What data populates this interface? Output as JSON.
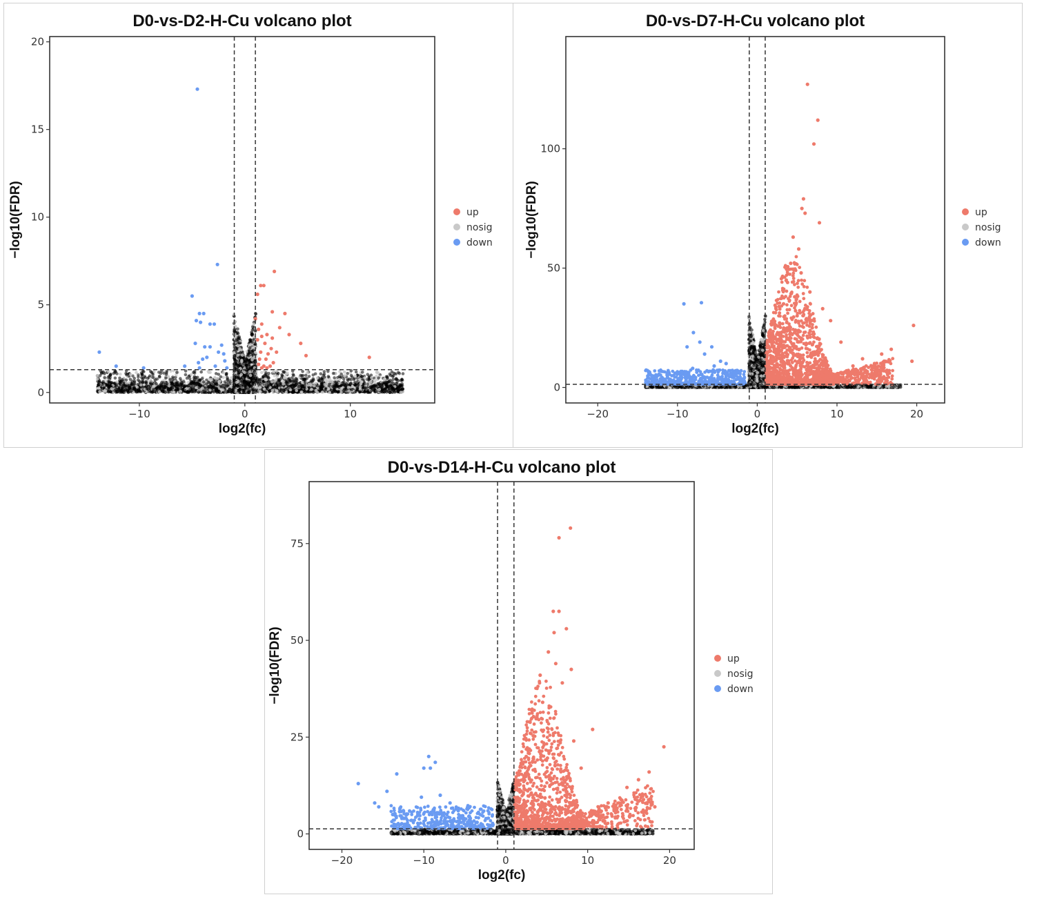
{
  "chart_data": [
    {
      "type": "scatter",
      "title": "D0-vs-D2-H-Cu volcano plot",
      "xlabel": "log2(fc)",
      "ylabel": "-log10(FDR)",
      "xlim": [
        -18.5,
        18
      ],
      "ylim": [
        -0.6,
        20.3
      ],
      "xticks": [
        -10,
        0,
        10
      ],
      "yticks": [
        0,
        5,
        10,
        15,
        20
      ],
      "fc_cutoff": [
        -1,
        1
      ],
      "fdr_cutoff": 1.3,
      "legend": {
        "position": "right",
        "entries": [
          {
            "key": "up",
            "label": "up",
            "color": "#EE7A6B"
          },
          {
            "key": "nosig",
            "label": "nosig",
            "color": "#C9C9C9"
          },
          {
            "key": "down",
            "label": "down",
            "color": "#6A9BF2"
          }
        ]
      },
      "series": [
        {
          "name": "up",
          "points": [
            [
              2.8,
              6.9
            ],
            [
              1.5,
              6.1
            ],
            [
              1.8,
              6.1
            ],
            [
              1.2,
              5.6
            ],
            [
              1.0,
              4.2
            ],
            [
              1.6,
              3.9
            ],
            [
              2.6,
              4.6
            ],
            [
              3.8,
              4.5
            ],
            [
              1.3,
              3.6
            ],
            [
              3.3,
              3.7
            ],
            [
              4.2,
              3.3
            ],
            [
              1.6,
              3.2
            ],
            [
              2.1,
              3.3
            ],
            [
              2.6,
              3.1
            ],
            [
              1.2,
              3.0
            ],
            [
              5.3,
              2.8
            ],
            [
              1.9,
              2.8
            ],
            [
              2.5,
              2.5
            ],
            [
              1.5,
              2.3
            ],
            [
              3.0,
              2.3
            ],
            [
              2.2,
              2.2
            ],
            [
              5.8,
              2.1
            ],
            [
              11.8,
              2.0
            ],
            [
              1.4,
              1.9
            ],
            [
              2.0,
              1.9
            ],
            [
              2.7,
              1.7
            ],
            [
              1.3,
              1.6
            ],
            [
              1.8,
              1.5
            ],
            [
              2.4,
              1.5
            ],
            [
              1.6,
              1.4
            ],
            [
              2.1,
              1.4
            ]
          ]
        },
        {
          "name": "down",
          "points": [
            [
              -4.5,
              17.3
            ],
            [
              -2.6,
              7.3
            ],
            [
              -5.0,
              5.5
            ],
            [
              -3.9,
              4.5
            ],
            [
              -4.3,
              4.5
            ],
            [
              -4.2,
              4.0
            ],
            [
              -3.3,
              3.9
            ],
            [
              -2.9,
              3.9
            ],
            [
              -4.6,
              4.1
            ],
            [
              -13.8,
              2.3
            ],
            [
              -4.7,
              2.8
            ],
            [
              -3.8,
              2.6
            ],
            [
              -3.3,
              2.6
            ],
            [
              -2.2,
              2.7
            ],
            [
              -2.5,
              2.3
            ],
            [
              -2.0,
              2.2
            ],
            [
              -3.6,
              2.0
            ],
            [
              -4.0,
              1.9
            ],
            [
              -4.4,
              1.7
            ],
            [
              -1.9,
              1.8
            ],
            [
              -12.2,
              1.5
            ],
            [
              -9.6,
              1.4
            ],
            [
              -5.7,
              1.5
            ],
            [
              -2.8,
              1.5
            ],
            [
              -4.3,
              1.4
            ],
            [
              -1.7,
              1.4
            ]
          ]
        },
        {
          "name": "nosig",
          "points": []
        }
      ]
    },
    {
      "type": "scatter",
      "title": "D0-vs-D7-H-Cu volcano plot",
      "xlabel": "log2(fc)",
      "ylabel": "-log10(FDR)",
      "xlim": [
        -24,
        23.5
      ],
      "ylim": [
        -6.5,
        147
      ],
      "xticks": [
        -20,
        -10,
        0,
        10,
        20
      ],
      "yticks": [
        0,
        50,
        100
      ],
      "fc_cutoff": [
        -1,
        1
      ],
      "fdr_cutoff": 1.3,
      "legend": {
        "position": "right",
        "entries": [
          {
            "key": "up",
            "label": "up",
            "color": "#EE7A6B"
          },
          {
            "key": "nosig",
            "label": "nosig",
            "color": "#C9C9C9"
          },
          {
            "key": "down",
            "label": "down",
            "color": "#6A9BF2"
          }
        ]
      },
      "series": [
        {
          "name": "up",
          "points": [
            [
              6.3,
              127
            ],
            [
              7.6,
              112
            ],
            [
              7.1,
              102
            ],
            [
              5.8,
              79
            ],
            [
              5.6,
              75
            ],
            [
              6.0,
              73
            ],
            [
              7.8,
              69
            ],
            [
              4.5,
              63
            ],
            [
              5.2,
              58
            ],
            [
              4.2,
              52
            ],
            [
              5.5,
              48
            ],
            [
              3.8,
              44
            ],
            [
              6.6,
              40
            ],
            [
              4.7,
              38
            ],
            [
              3.3,
              35
            ],
            [
              8.2,
              33
            ],
            [
              9.2,
              28
            ],
            [
              19.6,
              26
            ],
            [
              5.0,
              30
            ],
            [
              2.8,
              27
            ],
            [
              6.9,
              25
            ],
            [
              4.1,
              24
            ],
            [
              3.0,
              20
            ],
            [
              10.5,
              19
            ],
            [
              16.8,
              16
            ],
            [
              15.6,
              14
            ],
            [
              19.4,
              11
            ],
            [
              13.2,
              12
            ],
            [
              14.7,
              10
            ],
            [
              12.0,
              9
            ],
            [
              11.2,
              7
            ],
            [
              2.4,
              13
            ]
          ]
        },
        {
          "name": "down",
          "points": [
            [
              -9.2,
              35
            ],
            [
              -7.0,
              35.5
            ],
            [
              -8.0,
              23
            ],
            [
              -8.8,
              17
            ],
            [
              -7.2,
              19
            ],
            [
              -5.7,
              17
            ],
            [
              -6.6,
              14
            ],
            [
              -4.6,
              11
            ],
            [
              -5.4,
              9
            ],
            [
              -3.9,
              10
            ],
            [
              -8.1,
              8
            ],
            [
              -10.3,
              6
            ],
            [
              -12.5,
              5
            ],
            [
              -11.9,
              4
            ],
            [
              -13.0,
              3.5
            ],
            [
              -6.3,
              7
            ],
            [
              -4.0,
              6
            ],
            [
              -2.8,
              5
            ],
            [
              -9.0,
              4
            ]
          ]
        },
        {
          "name": "nosig",
          "points": []
        }
      ]
    },
    {
      "type": "scatter",
      "title": "D0-vs-D14-H-Cu volcano plot",
      "xlabel": "log2(fc)",
      "ylabel": "-log10(FDR)",
      "xlim": [
        -24,
        23
      ],
      "ylim": [
        -4,
        91
      ],
      "xticks": [
        -20,
        -10,
        0,
        10,
        20
      ],
      "yticks": [
        0,
        25,
        50,
        75
      ],
      "fc_cutoff": [
        -1,
        1
      ],
      "fdr_cutoff": 1.3,
      "legend": {
        "position": "right",
        "entries": [
          {
            "key": "up",
            "label": "up",
            "color": "#EE7A6B"
          },
          {
            "key": "nosig",
            "label": "nosig",
            "color": "#C9C9C9"
          },
          {
            "key": "down",
            "label": "down",
            "color": "#6A9BF2"
          }
        ]
      },
      "series": [
        {
          "name": "up",
          "points": [
            [
              7.9,
              79
            ],
            [
              6.5,
              76.5
            ],
            [
              5.8,
              57.5
            ],
            [
              6.5,
              57.5
            ],
            [
              7.4,
              53
            ],
            [
              5.9,
              52
            ],
            [
              8.0,
              42.5
            ],
            [
              5.2,
              47
            ],
            [
              6.1,
              44
            ],
            [
              6.9,
              39
            ],
            [
              10.6,
              27
            ],
            [
              19.3,
              22.5
            ],
            [
              17.5,
              16
            ],
            [
              16.2,
              14
            ],
            [
              14.8,
              12
            ],
            [
              8.3,
              24
            ],
            [
              9.2,
              17
            ],
            [
              18.2,
              7
            ],
            [
              12.5,
              8
            ],
            [
              11.5,
              6
            ],
            [
              4.5,
              34
            ],
            [
              3.8,
              30
            ],
            [
              2.5,
              20
            ],
            [
              4.2,
              41
            ],
            [
              3.0,
              26
            ],
            [
              2.2,
              15
            ]
          ]
        },
        {
          "name": "down",
          "points": [
            [
              -9.4,
              20
            ],
            [
              -8.6,
              18.5
            ],
            [
              -9.2,
              17
            ],
            [
              -10.0,
              17
            ],
            [
              -13.3,
              15.5
            ],
            [
              -18.0,
              13
            ],
            [
              -14.5,
              11
            ],
            [
              -8.0,
              10
            ],
            [
              -10.3,
              9.5
            ],
            [
              -16.0,
              8
            ],
            [
              -15.5,
              7
            ],
            [
              -6.8,
              8
            ],
            [
              -5.8,
              6
            ],
            [
              -12.5,
              6
            ],
            [
              -13.8,
              5
            ],
            [
              -9.0,
              5
            ],
            [
              -7.2,
              5
            ],
            [
              -4.5,
              4.5
            ],
            [
              -11.5,
              3.5
            ],
            [
              -3.5,
              3
            ]
          ]
        },
        {
          "name": "nosig",
          "points": []
        }
      ]
    }
  ]
}
